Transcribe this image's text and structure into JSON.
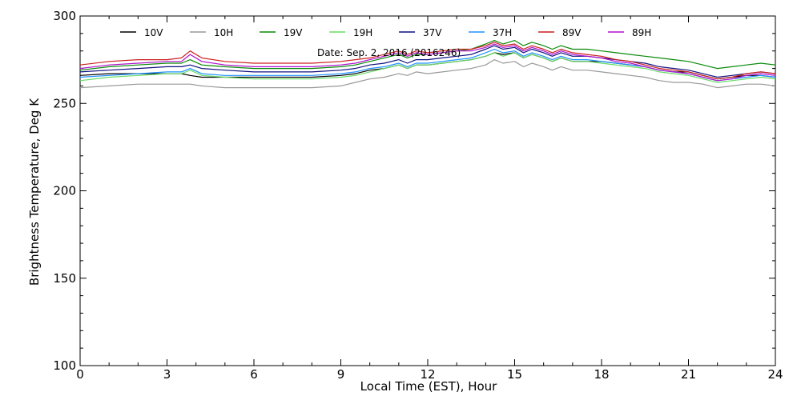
{
  "chart_data": {
    "type": "line",
    "title": "",
    "annotation": "Date: Sep. 2, 2016 (2016246)",
    "xlabel": "Local Time (EST), Hour",
    "ylabel": "Brightness Temperature, Deg K",
    "xlim": [
      0,
      24
    ],
    "ylim": [
      100,
      300
    ],
    "xticks": [
      0,
      3,
      6,
      9,
      12,
      15,
      18,
      21,
      24
    ],
    "yticks": [
      100,
      150,
      200,
      250,
      300
    ],
    "grid": false,
    "legend_position": "top",
    "x": [
      0,
      1,
      2,
      3,
      3.5,
      3.8,
      4.2,
      5,
      6,
      7,
      8,
      9,
      9.5,
      10,
      10.5,
      11,
      11.3,
      11.6,
      12,
      12.5,
      13,
      13.5,
      14,
      14.3,
      14.6,
      15,
      15.3,
      15.6,
      16,
      16.3,
      16.6,
      17,
      17.5,
      18,
      18.5,
      19,
      19.5,
      20,
      20.5,
      21,
      21.5,
      22,
      22.5,
      23,
      23.5,
      24
    ],
    "series": [
      {
        "name": "10V",
        "color": "#000000",
        "values": [
          266,
          267,
          267,
          267,
          267,
          266,
          265,
          265,
          265,
          265,
          265,
          266,
          267,
          269,
          270,
          272,
          270,
          272,
          272,
          273,
          274,
          275,
          277,
          279,
          278,
          279,
          276,
          278,
          276,
          274,
          276,
          274,
          274,
          274,
          273,
          272,
          271,
          269,
          268,
          268,
          266,
          264,
          265,
          266,
          266,
          265
        ]
      },
      {
        "name": "10H",
        "color": "#999999",
        "values": [
          259,
          260,
          261,
          261,
          261,
          261,
          260,
          259,
          259,
          259,
          259,
          260,
          262,
          264,
          265,
          267,
          266,
          268,
          267,
          268,
          269,
          270,
          272,
          275,
          273,
          274,
          271,
          273,
          271,
          269,
          271,
          269,
          269,
          268,
          267,
          266,
          265,
          263,
          262,
          262,
          261,
          259,
          260,
          261,
          261,
          260
        ]
      },
      {
        "name": "19V",
        "color": "#0a8a0a",
        "values": [
          269,
          271,
          272,
          273,
          273,
          275,
          272,
          271,
          270,
          270,
          270,
          271,
          272,
          274,
          276,
          278,
          276,
          278,
          278,
          279,
          280,
          281,
          284,
          286,
          284,
          286,
          283,
          285,
          283,
          281,
          283,
          281,
          281,
          280,
          279,
          278,
          277,
          276,
          275,
          274,
          272,
          270,
          271,
          272,
          273,
          272
        ]
      },
      {
        "name": "19H",
        "color": "#66dd66",
        "values": [
          263,
          265,
          266,
          267,
          267,
          269,
          266,
          265,
          264,
          264,
          264,
          265,
          266,
          268,
          270,
          272,
          270,
          272,
          272,
          273,
          274,
          275,
          277,
          279,
          277,
          279,
          276,
          278,
          276,
          274,
          276,
          274,
          274,
          273,
          272,
          271,
          270,
          268,
          267,
          266,
          264,
          262,
          263,
          264,
          265,
          264
        ]
      },
      {
        "name": "37V",
        "color": "#101080",
        "values": [
          268,
          269,
          270,
          271,
          271,
          272,
          270,
          269,
          268,
          268,
          268,
          269,
          270,
          272,
          273,
          275,
          273,
          275,
          275,
          276,
          277,
          278,
          281,
          283,
          281,
          282,
          279,
          281,
          279,
          277,
          279,
          277,
          277,
          276,
          275,
          274,
          273,
          271,
          270,
          269,
          267,
          265,
          266,
          267,
          268,
          267
        ]
      },
      {
        "name": "37H",
        "color": "#1e90ff",
        "values": [
          265,
          266,
          267,
          268,
          268,
          270,
          267,
          266,
          266,
          266,
          266,
          267,
          268,
          270,
          271,
          273,
          271,
          273,
          273,
          274,
          275,
          276,
          279,
          281,
          279,
          280,
          277,
          279,
          277,
          275,
          277,
          275,
          275,
          274,
          273,
          272,
          271,
          269,
          268,
          267,
          265,
          263,
          264,
          265,
          266,
          265
        ]
      },
      {
        "name": "89V",
        "color": "#cc1f1f",
        "values": [
          272,
          274,
          275,
          275,
          276,
          280,
          276,
          274,
          273,
          273,
          273,
          274,
          275,
          276,
          278,
          280,
          278,
          280,
          279,
          280,
          281,
          281,
          283,
          285,
          283,
          284,
          281,
          283,
          281,
          279,
          281,
          279,
          278,
          277,
          275,
          274,
          272,
          270,
          269,
          268,
          266,
          264,
          265,
          267,
          268,
          267
        ]
      },
      {
        "name": "89H",
        "color": "#b010d0",
        "values": [
          270,
          272,
          273,
          274,
          274,
          278,
          274,
          272,
          271,
          271,
          271,
          272,
          273,
          275,
          277,
          279,
          277,
          279,
          278,
          279,
          280,
          280,
          282,
          284,
          282,
          283,
          280,
          282,
          280,
          278,
          280,
          278,
          277,
          276,
          274,
          273,
          271,
          269,
          268,
          267,
          265,
          263,
          264,
          266,
          267,
          266
        ]
      }
    ]
  }
}
